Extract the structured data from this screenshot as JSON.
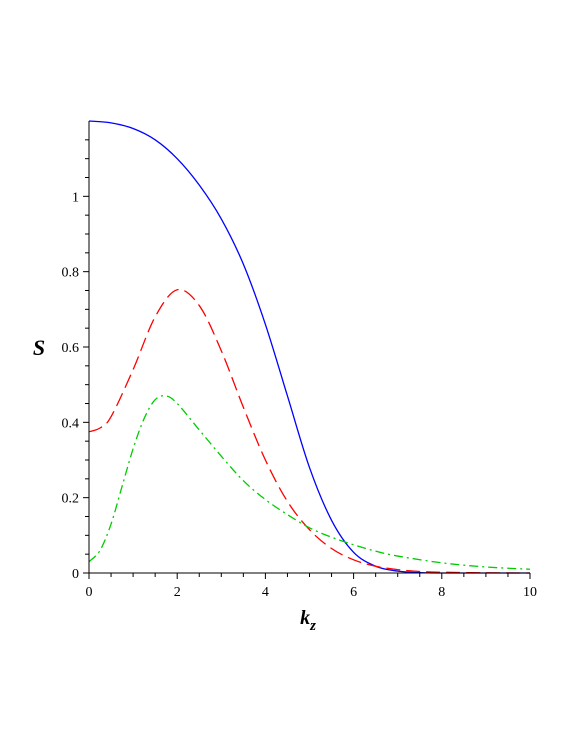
{
  "chart_data": {
    "type": "line",
    "title": "",
    "xlabel": "k",
    "xlabel_subscript": "z",
    "ylabel": "S",
    "xlim": [
      0,
      10
    ],
    "ylim": [
      0,
      1.2
    ],
    "x_ticks": [
      0,
      2,
      4,
      6,
      8,
      10
    ],
    "x_tick_labels": [
      "0",
      "2",
      "4",
      "6",
      "8",
      "10"
    ],
    "y_ticks": [
      0,
      0.2,
      0.4,
      0.6,
      0.8,
      1
    ],
    "y_tick_labels": [
      "0",
      "0.2",
      "0.4",
      "0.6",
      "0.8",
      "1"
    ],
    "grid": false,
    "legend": "none",
    "series": [
      {
        "color": "#0000ff",
        "style": "solid",
        "x": [
          0,
          0.5,
          1,
          1.5,
          2,
          2.5,
          3,
          3.5,
          4,
          4.5,
          5,
          5.5,
          6,
          6.5,
          7,
          7.5,
          8,
          8.5,
          9,
          9.5,
          10
        ],
        "y": [
          1.2,
          1.195,
          1.18,
          1.15,
          1.1,
          1.03,
          0.94,
          0.82,
          0.66,
          0.47,
          0.28,
          0.14,
          0.055,
          0.018,
          0.005,
          0.001,
          0,
          0,
          0,
          0,
          0
        ]
      },
      {
        "color": "#ff0000",
        "style": "dashed",
        "x": [
          0,
          0.25,
          0.5,
          1,
          1.5,
          2,
          2.5,
          3,
          3.5,
          4,
          4.5,
          5,
          5.5,
          6,
          6.5,
          7,
          7.5,
          8,
          9,
          10
        ],
        "y": [
          0.375,
          0.385,
          0.415,
          0.54,
          0.68,
          0.752,
          0.71,
          0.59,
          0.44,
          0.3,
          0.19,
          0.115,
          0.065,
          0.035,
          0.018,
          0.009,
          0.004,
          0.002,
          0.0005,
          0
        ]
      },
      {
        "color": "#00cc00",
        "style": "dashdot",
        "x": [
          0,
          0.25,
          0.5,
          0.75,
          1,
          1.25,
          1.5,
          1.75,
          2,
          2.5,
          3,
          3.5,
          4,
          4.5,
          5,
          5.5,
          6,
          6.5,
          7,
          8,
          9,
          10
        ],
        "y": [
          0.03,
          0.06,
          0.13,
          0.23,
          0.33,
          0.41,
          0.46,
          0.47,
          0.45,
          0.38,
          0.31,
          0.245,
          0.195,
          0.155,
          0.12,
          0.095,
          0.075,
          0.058,
          0.045,
          0.027,
          0.016,
          0.01
        ]
      }
    ]
  }
}
